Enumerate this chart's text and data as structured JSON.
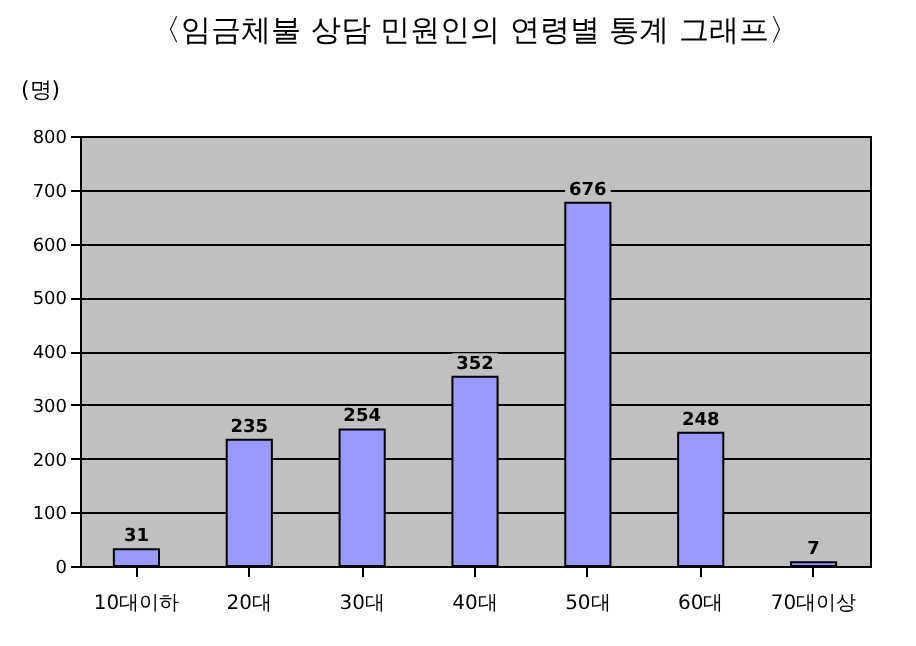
{
  "chart_data": {
    "type": "bar",
    "title": "〈임금체불 상담 민원인의 연령별 통계 그래프〉",
    "ylabel": "(명)",
    "categories": [
      "10대이하",
      "20대",
      "30대",
      "40대",
      "50대",
      "60대",
      "70대이상"
    ],
    "values": [
      31,
      235,
      254,
      352,
      676,
      248,
      7
    ],
    "color": "#9999ff",
    "ylim": [
      0,
      800
    ],
    "yticks": [
      0,
      100,
      200,
      300,
      400,
      500,
      600,
      700,
      800
    ],
    "grid": "y",
    "data_labels": true
  }
}
